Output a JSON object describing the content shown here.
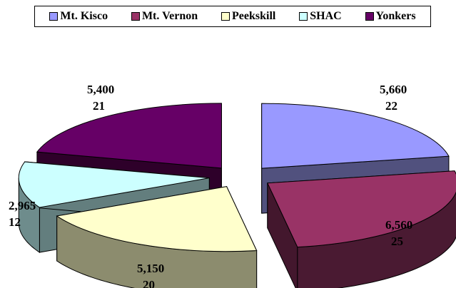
{
  "chart_data": {
    "type": "pie",
    "style": "exploded-3d",
    "legend_position": "top",
    "categories": [
      "Mt. Kisco",
      "Mt. Vernon",
      "Peekskill",
      "SHAC",
      "Yonkers"
    ],
    "values": [
      5660,
      6560,
      5150,
      2965,
      5400
    ],
    "value_labels": [
      "5,660",
      "6,560",
      "5,150",
      "2,965",
      "5,400"
    ],
    "percent_labels": [
      "22",
      "25",
      "20",
      "12",
      "21"
    ],
    "colors": [
      "#9999ff",
      "#993366",
      "#ffffcc",
      "#ccffff",
      "#660066"
    ],
    "side_colors": [
      "#5a5a8c",
      "#4a1a32",
      "#8c8c6e",
      "#6e8c8c",
      "#33002f"
    ]
  }
}
